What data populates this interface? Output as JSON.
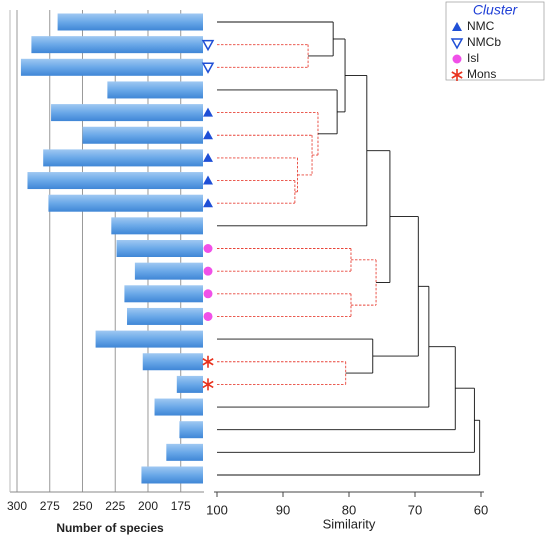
{
  "chart_data": {
    "type": "bar",
    "orientation": "horizontal",
    "xlabel": "Number of species",
    "xlim": [
      300,
      158
    ],
    "xticks": [
      300,
      275,
      250,
      225,
      200,
      175
    ],
    "grid": true,
    "values": [
      269,
      289,
      297,
      231,
      274,
      250,
      280,
      292,
      276,
      228,
      224,
      210,
      218,
      216,
      240,
      204,
      178,
      195,
      176,
      186,
      205
    ],
    "dendrogram": {
      "xlabel": "Similarity",
      "xlim": [
        100,
        60
      ],
      "xticks": [
        100,
        90,
        80,
        70,
        60
      ],
      "merges": [
        {
          "children": [
            1,
            2
          ],
          "height": 86.2,
          "dashed": true
        },
        {
          "children": [
            0,
            21
          ],
          "height": 82.4,
          "dashed": false
        },
        {
          "children": [
            7,
            8
          ],
          "height": 88.2,
          "dashed": true
        },
        {
          "children": [
            6,
            23
          ],
          "height": 87.8,
          "dashed": true
        },
        {
          "children": [
            5,
            24
          ],
          "height": 85.6,
          "dashed": true
        },
        {
          "children": [
            4,
            25
          ],
          "height": 84.7,
          "dashed": true
        },
        {
          "children": [
            3,
            26
          ],
          "height": 81.8,
          "dashed": false
        },
        {
          "children": [
            22,
            27
          ],
          "height": 80.6,
          "dashed": false
        },
        {
          "children": [
            28,
            9
          ],
          "height": 77.3,
          "dashed": false
        },
        {
          "children": [
            10,
            11
          ],
          "height": 79.7,
          "dashed": true
        },
        {
          "children": [
            12,
            13
          ],
          "height": 79.7,
          "dashed": true
        },
        {
          "children": [
            30,
            31
          ],
          "height": 75.9,
          "dashed": true
        },
        {
          "children": [
            29,
            32
          ],
          "height": 73.8,
          "dashed": false
        },
        {
          "children": [
            15,
            16
          ],
          "height": 80.5,
          "dashed": true
        },
        {
          "children": [
            14,
            34
          ],
          "height": 76.4,
          "dashed": false
        },
        {
          "children": [
            33,
            35
          ],
          "height": 69.5,
          "dashed": false
        },
        {
          "children": [
            36,
            17
          ],
          "height": 67.9,
          "dashed": false
        },
        {
          "children": [
            37,
            18
          ],
          "height": 63.9,
          "dashed": false
        },
        {
          "children": [
            38,
            19
          ],
          "height": 61.0,
          "dashed": false
        },
        {
          "children": [
            39,
            20
          ],
          "height": 60.2,
          "dashed": false
        }
      ]
    },
    "legend": {
      "title": "Cluster",
      "position": "upper right"
    },
    "clusters": [
      {
        "name": "NMC",
        "marker": "triangle",
        "color": "#1f4fd6",
        "rows": [
          4,
          5,
          6,
          7,
          8
        ]
      },
      {
        "name": "NMCb",
        "marker": "triangle-open",
        "color": "#1f4fd6",
        "rows": [
          1,
          2
        ]
      },
      {
        "name": "Isl",
        "marker": "circle",
        "color": "#f050e8",
        "rows": [
          10,
          11,
          12,
          13
        ]
      },
      {
        "name": "Mons",
        "marker": "asterisk",
        "color": "#e8321e",
        "rows": [
          15,
          16
        ]
      }
    ]
  }
}
